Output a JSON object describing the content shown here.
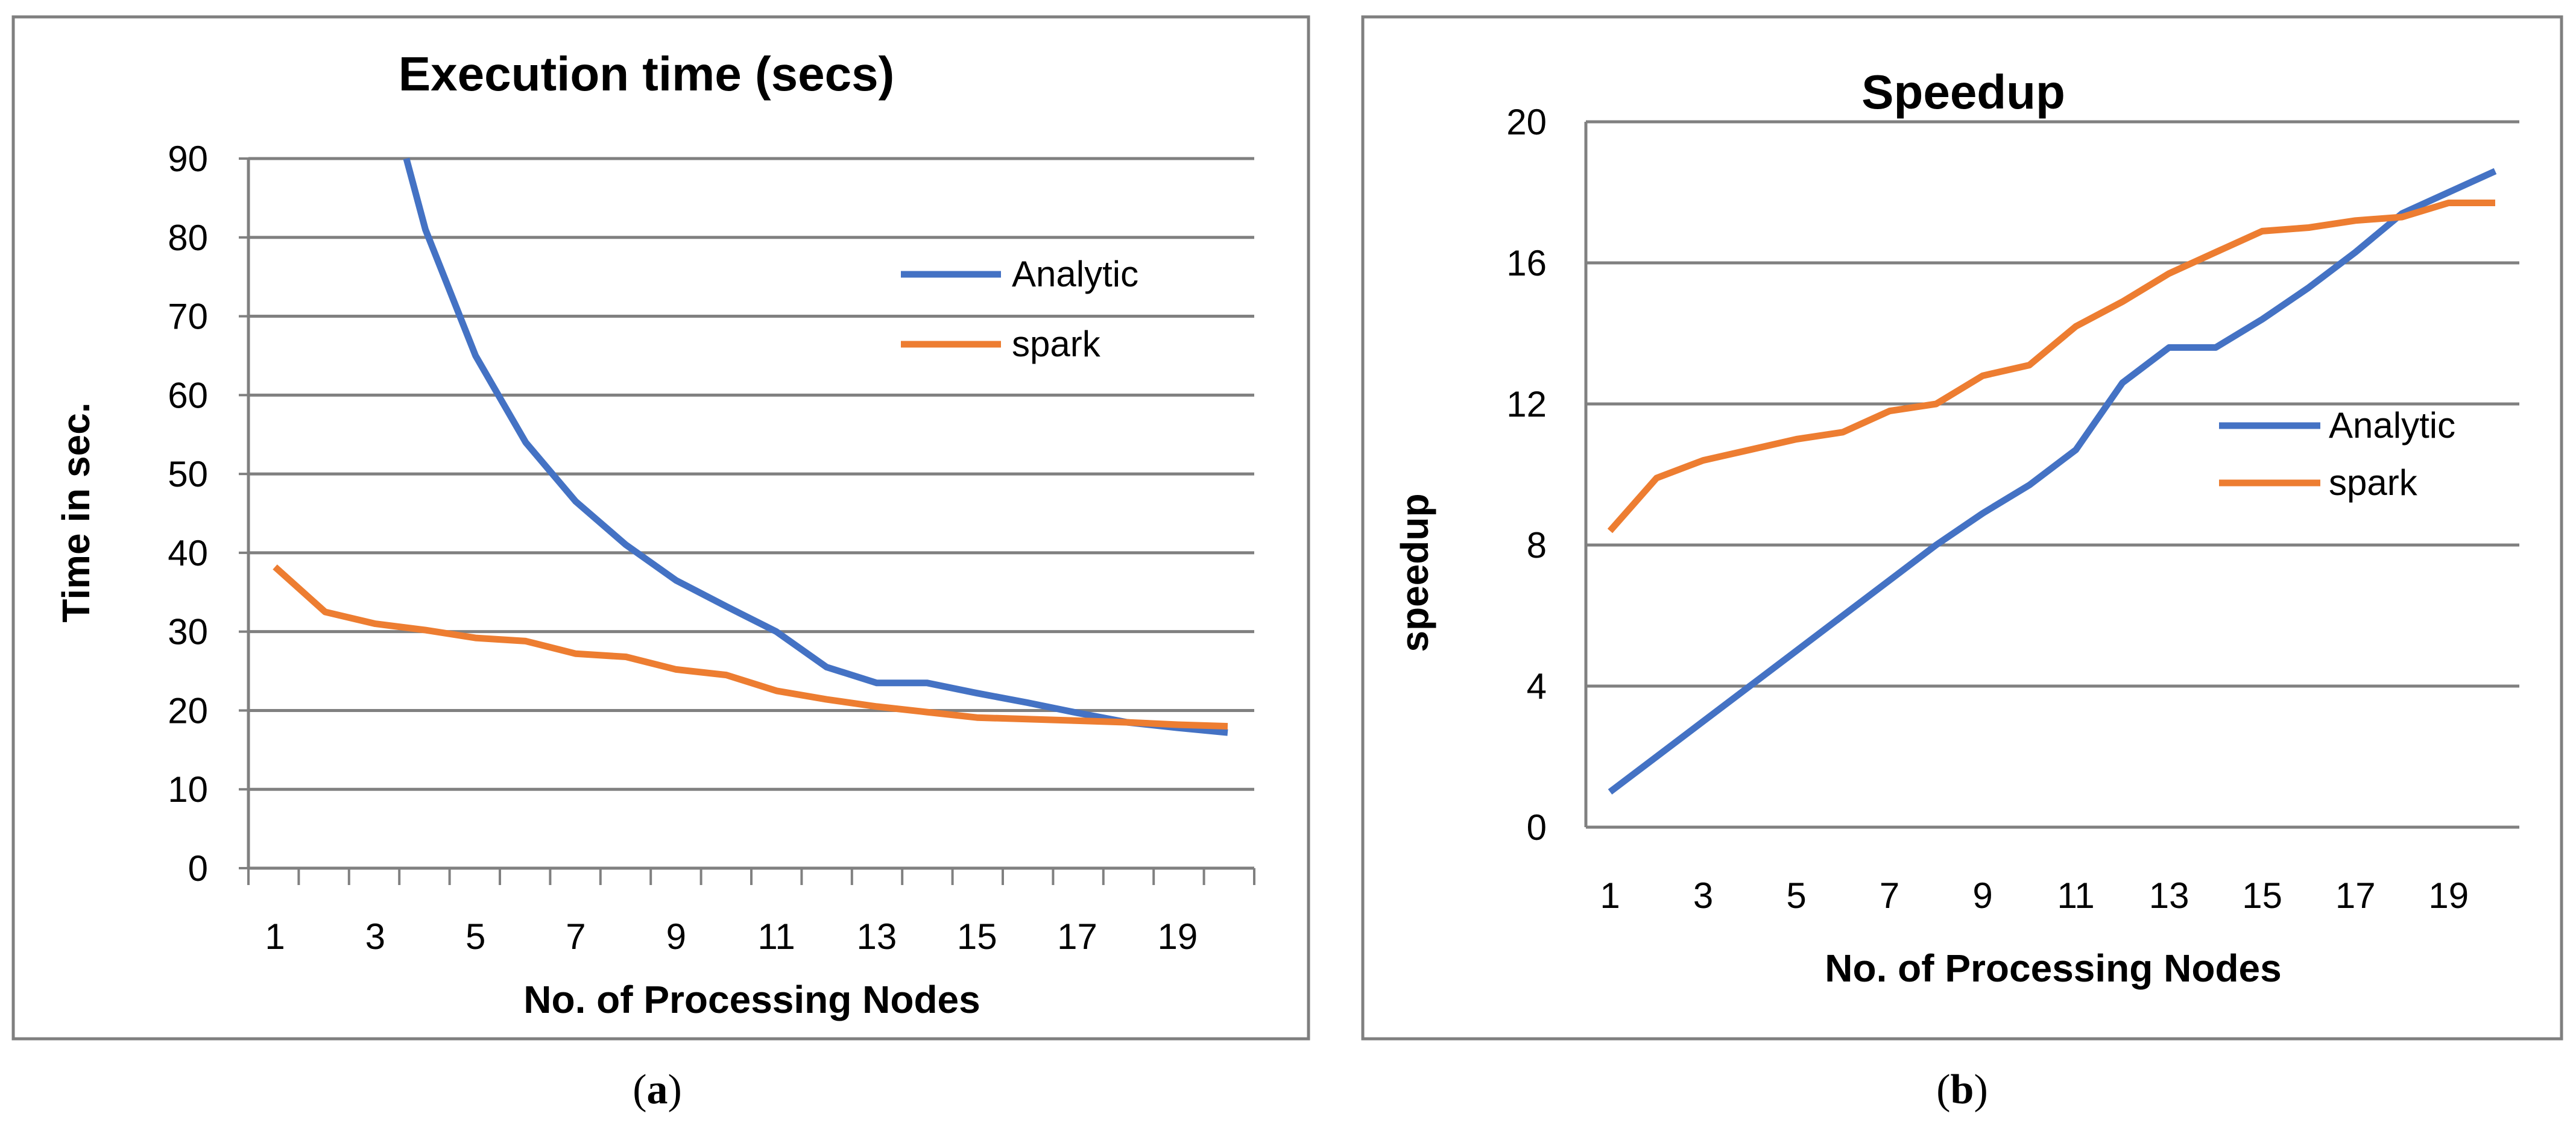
{
  "colors": {
    "analytic": "#4472C4",
    "spark": "#ED7D31",
    "gridline": "#808080",
    "frame": "#7F7F7F"
  },
  "chart_data": [
    {
      "type": "line",
      "caption": {
        "open": "(",
        "letter": "a",
        "close": ")"
      },
      "title": "Execution time (secs)",
      "xlabel": "No. of Processing Nodes",
      "ylabel": "Time in sec.",
      "x": [
        1,
        2,
        3,
        4,
        5,
        6,
        7,
        8,
        9,
        10,
        11,
        12,
        13,
        14,
        15,
        16,
        17,
        18,
        19,
        20
      ],
      "xticks": [
        "1",
        "3",
        "5",
        "7",
        "9",
        "11",
        "13",
        "15",
        "17",
        "19"
      ],
      "ylim": [
        0,
        90
      ],
      "yticks": [
        "0",
        "10",
        "20",
        "30",
        "40",
        "50",
        "60",
        "70",
        "80",
        "90"
      ],
      "grid": true,
      "legend_position": "top-right",
      "series": [
        {
          "name": "Analytic",
          "color_key": "analytic",
          "values": [
            null,
            null,
            null,
            81,
            65,
            54,
            46.5,
            41,
            36.5,
            33.2,
            30,
            25.5,
            23.5,
            23.5,
            22.2,
            21,
            19.7,
            18.5,
            17.8,
            17.2
          ],
          "clip_top": true,
          "clip_start": [
            3.62,
            90
          ]
        },
        {
          "name": "spark",
          "color_key": "spark",
          "values": [
            38.2,
            32.5,
            31,
            30.2,
            29.2,
            28.8,
            27.2,
            26.8,
            25.2,
            24.5,
            22.5,
            21.4,
            20.5,
            19.8,
            19.1,
            18.9,
            18.7,
            18.5,
            18.2,
            18
          ]
        }
      ]
    },
    {
      "type": "line",
      "caption": {
        "open": "(",
        "letter": "b",
        "close": ")"
      },
      "title": "Speedup",
      "xlabel": "No. of Processing Nodes",
      "ylabel": "speedup",
      "x": [
        1,
        2,
        3,
        4,
        5,
        6,
        7,
        8,
        9,
        10,
        11,
        12,
        13,
        14,
        15,
        16,
        17,
        18,
        19,
        20
      ],
      "xticks": [
        "1",
        "3",
        "5",
        "7",
        "9",
        "11",
        "13",
        "15",
        "17",
        "19"
      ],
      "ylim": [
        0,
        20
      ],
      "yticks": [
        "0",
        "4",
        "8",
        "12",
        "16",
        "20"
      ],
      "grid": true,
      "legend_position": "middle-right",
      "series": [
        {
          "name": "Analytic",
          "color_key": "analytic",
          "values": [
            1,
            2,
            3,
            4,
            5,
            6,
            7,
            8,
            8.9,
            9.7,
            10.7,
            12.6,
            13.6,
            13.6,
            14.4,
            15.3,
            16.3,
            17.4,
            18,
            18.6
          ]
        },
        {
          "name": "spark",
          "color_key": "spark",
          "values": [
            8.4,
            9.9,
            10.4,
            10.7,
            11,
            11.2,
            11.8,
            12,
            12.8,
            13.1,
            14.2,
            14.9,
            15.7,
            16.3,
            16.9,
            17,
            17.2,
            17.3,
            17.7,
            17.7
          ]
        }
      ]
    }
  ]
}
